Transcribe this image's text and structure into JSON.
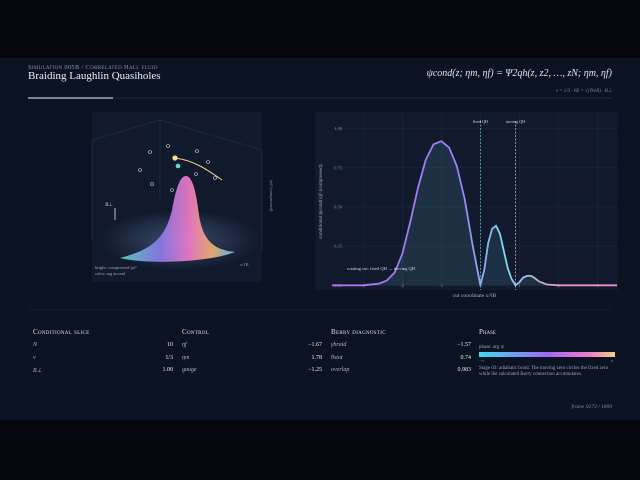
{
  "header": {
    "kicker": "Simulation 005B / Correlated Hall fluid",
    "title": "Braiding Laughlin Quasiholes",
    "equation": "ψcond(z; ηm, ηf) = Ψ2qh(z, z2, …, zN; ηm, ηf)",
    "subline": "ν = 1/3 · ℓB = √(ℏ/eB) · B⊥"
  },
  "surface": {
    "axis_label": "B⊥",
    "x_label": "x/ℓB",
    "z_label": "|ψ|² (compressed)",
    "legend": [
      "bright: compressed |ψ|²",
      "color: arg ψcond"
    ]
  },
  "chart_data": {
    "type": "line",
    "color": "#7fd8f0",
    "x": [
      -3.8,
      -3.4,
      -3,
      -2.6,
      -2.4,
      -2.2,
      -2,
      -1.8,
      -1.6,
      -1.4,
      -1.2,
      -1,
      -0.8,
      -0.6,
      -0.4,
      -0.2,
      0,
      0.1,
      0.2,
      0.3,
      0.4,
      0.5,
      0.6,
      0.7,
      0.8,
      0.9,
      1.0,
      1.1,
      1.2,
      1.3,
      1.4,
      1.5,
      1.7,
      2,
      2.5,
      3,
      3.5
    ],
    "values": [
      0,
      0,
      0,
      0.01,
      0.03,
      0.08,
      0.2,
      0.4,
      0.62,
      0.8,
      0.9,
      0.92,
      0.88,
      0.76,
      0.55,
      0.26,
      0,
      0.1,
      0.27,
      0.36,
      0.38,
      0.33,
      0.22,
      0.11,
      0.04,
      0,
      0.02,
      0.05,
      0.06,
      0.06,
      0.045,
      0.025,
      0.005,
      0,
      0,
      0,
      0
    ],
    "xlim": [
      -3.8,
      3.5
    ],
    "ylim": [
      -0.03,
      1.1
    ],
    "xticks": [
      -3,
      -2,
      -1,
      0,
      1,
      2,
      3
    ],
    "yticks": [
      {
        "value": 0,
        "label": "0.00"
      },
      {
        "value": 0.25,
        "label": "0.25"
      },
      {
        "value": 0.5,
        "label": "0.50"
      },
      {
        "value": 0.75,
        "label": "0.75"
      },
      {
        "value": 1,
        "label": "1.00"
      }
    ],
    "xlabel": "cut coordinate x/ℓB",
    "ylabel": "conditional |ψcond(x)|² (compressed)",
    "markers": [
      {
        "label": "fixed QH",
        "x": 0
      },
      {
        "label": "moving QH",
        "x": 0.9
      }
    ],
    "annotation": "rotating cut: fixed QH → moving QH",
    "grid": true
  },
  "panels": [
    {
      "title": "Conditional slice",
      "rows": [
        [
          "N",
          "10"
        ],
        [
          "ν",
          "1/3"
        ],
        [
          "B⊥",
          "1.00"
        ]
      ]
    },
    {
      "title": "Control",
      "rows": [
        [
          "ηf",
          "−1.67"
        ],
        [
          "ηm",
          "1.78"
        ],
        [
          "gauge",
          "−1.25"
        ]
      ]
    },
    {
      "title": "Berry diagnostic",
      "rows": [
        [
          "γbraid",
          "−1.57"
        ],
        [
          "θstat",
          "0.74"
        ],
        [
          "overlap",
          "0.983"
        ]
      ]
    }
  ],
  "phase": {
    "title": "Phase",
    "bar_label": "phase: arg ψ",
    "min_label": "−π",
    "max_label": "π",
    "note": "Stage 03: adiabatic braid. The moving zero circles the fixed zero while the calculated Berry connection accumulates."
  },
  "footer": "frame 0273 / 1800"
}
